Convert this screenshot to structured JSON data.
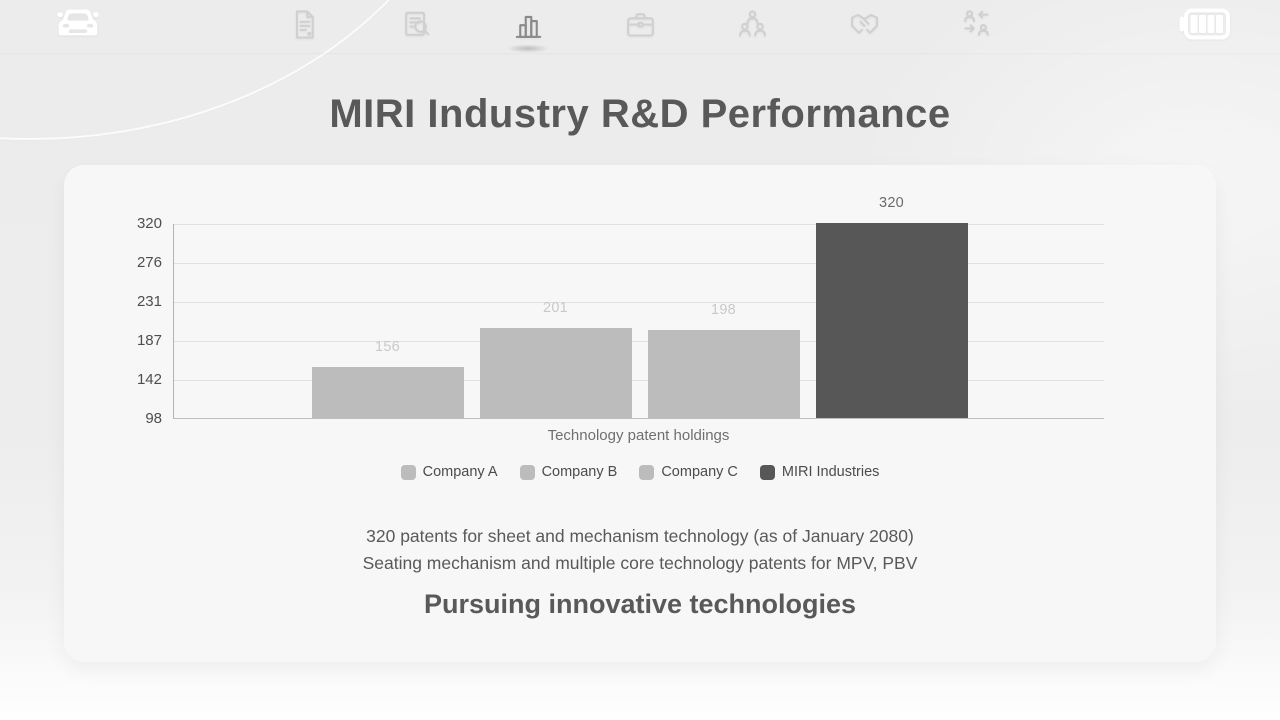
{
  "page": {
    "title": "MIRI Industry R&D Performance",
    "caption_line1": "320 patents for sheet and mechanism technology (as of January 2080)",
    "caption_line2": "Seating mechanism and multiple core technology patents for MPV, PBV",
    "tagline": "Pursuing innovative technologies"
  },
  "nav": {
    "left_icon": "car-icon",
    "items": [
      {
        "icon": "document-icon",
        "active": false
      },
      {
        "icon": "document-search-icon",
        "active": false
      },
      {
        "icon": "bar-chart-icon",
        "active": true
      },
      {
        "icon": "briefcase-icon",
        "active": false
      },
      {
        "icon": "team-icon",
        "active": false
      },
      {
        "icon": "handshake-icon",
        "active": false
      },
      {
        "icon": "people-exchange-icon",
        "active": false
      }
    ],
    "right_icon": "battery-icon"
  },
  "chart_data": {
    "type": "bar",
    "title": "",
    "xlabel": "Technology patent holdings",
    "ylabel": "",
    "categories": [
      "Company A",
      "Company B",
      "Company C",
      "MIRI Industries"
    ],
    "values": [
      156,
      201,
      198,
      320
    ],
    "yticks": [
      98,
      142,
      187,
      231,
      276,
      320
    ],
    "ylim": [
      98,
      320
    ],
    "grid": true,
    "legend_position": "bottom",
    "bar_colors": [
      "#bcbcbc",
      "#bcbcbc",
      "#bcbcbc",
      "#575757"
    ],
    "value_label_colors": [
      "#c9c9c9",
      "#c9c9c9",
      "#c9c9c9",
      "#6b6b6b"
    ]
  },
  "colors": {
    "accent_dark": "#575757",
    "bar_light": "#bcbcbc",
    "card_bg": "#f7f7f7",
    "page_bg": "#ececec"
  }
}
